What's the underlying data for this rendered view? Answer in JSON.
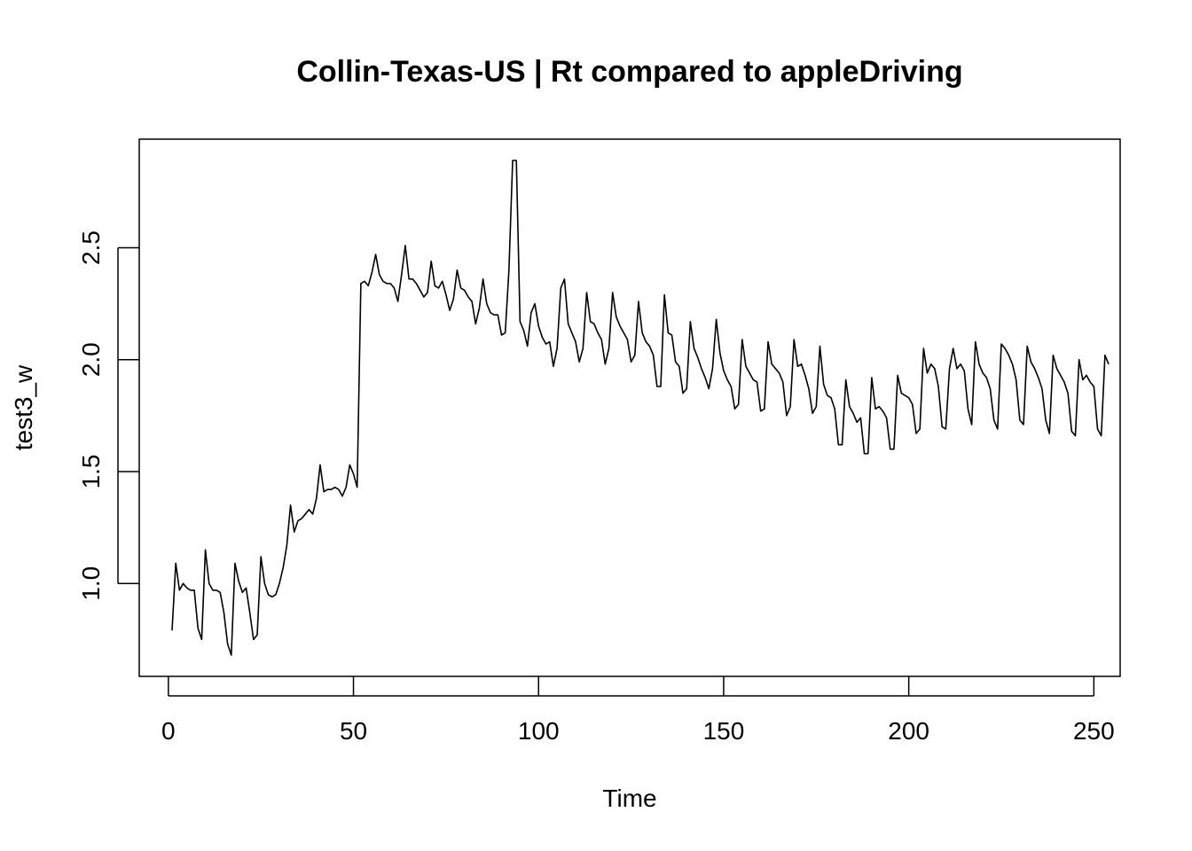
{
  "chart_data": {
    "type": "line",
    "title": "Collin-Texas-US | Rt compared to appleDriving",
    "xlabel": "Time",
    "ylabel": "test3_w",
    "xlim": [
      1,
      248
    ],
    "ylim": [
      0.68,
      2.89
    ],
    "x_ticks": [
      0,
      50,
      100,
      150,
      200,
      250
    ],
    "x_tick_labels": [
      "0",
      "50",
      "100",
      "150",
      "200",
      "250"
    ],
    "y_ticks": [
      1.0,
      1.5,
      2.0,
      2.5
    ],
    "y_tick_labels": [
      "1.0",
      "1.5",
      "2.0",
      "2.5"
    ],
    "grid": false,
    "legend": "none",
    "line_color": "#000000",
    "series": [
      {
        "x_start": 1,
        "x_step": 1,
        "values": [
          0.79,
          1.09,
          0.97,
          1.0,
          0.98,
          0.97,
          0.97,
          0.8,
          0.75,
          1.15,
          1.0,
          0.97,
          0.97,
          0.96,
          0.87,
          0.73,
          0.68,
          1.09,
          1.01,
          0.96,
          0.98,
          0.87,
          0.75,
          0.77,
          1.12,
          1.0,
          0.95,
          0.94,
          0.95,
          1.0,
          1.07,
          1.17,
          1.35,
          1.23,
          1.28,
          1.29,
          1.31,
          1.33,
          1.31,
          1.38,
          1.53,
          1.41,
          1.42,
          1.42,
          1.43,
          1.42,
          1.39,
          1.43,
          1.53,
          1.49,
          1.43,
          2.34,
          2.35,
          2.33,
          2.39,
          2.47,
          2.38,
          2.35,
          2.34,
          2.34,
          2.32,
          2.26,
          2.38,
          2.51,
          2.36,
          2.36,
          2.34,
          2.31,
          2.28,
          2.3,
          2.44,
          2.33,
          2.32,
          2.35,
          2.29,
          2.22,
          2.27,
          2.4,
          2.32,
          2.31,
          2.28,
          2.26,
          2.16,
          2.23,
          2.36,
          2.25,
          2.21,
          2.2,
          2.2,
          2.11,
          2.12,
          2.4,
          2.89,
          2.89,
          2.17,
          2.13,
          2.06,
          2.21,
          2.25,
          2.15,
          2.1,
          2.07,
          2.08,
          1.97,
          2.05,
          2.32,
          2.36,
          2.16,
          2.12,
          2.08,
          1.99,
          2.05,
          2.3,
          2.17,
          2.16,
          2.12,
          2.09,
          1.98,
          2.05,
          2.3,
          2.19,
          2.15,
          2.12,
          2.09,
          1.99,
          2.02,
          2.26,
          2.12,
          2.08,
          2.06,
          2.02,
          1.88,
          1.88,
          2.29,
          2.12,
          2.11,
          1.99,
          1.97,
          1.85,
          1.87,
          2.17,
          2.05,
          2.01,
          1.96,
          1.92,
          1.87,
          1.96,
          2.18,
          2.03,
          1.95,
          1.91,
          1.88,
          1.78,
          1.8,
          2.09,
          1.97,
          1.94,
          1.91,
          1.9,
          1.77,
          1.78,
          2.08,
          1.98,
          1.96,
          1.94,
          1.9,
          1.75,
          1.79,
          2.09,
          1.97,
          1.98,
          1.93,
          1.87,
          1.76,
          1.79,
          2.06,
          1.89,
          1.84,
          1.83,
          1.78,
          1.62,
          1.62,
          1.91,
          1.79,
          1.76,
          1.72,
          1.74,
          1.58,
          1.58,
          1.92,
          1.78,
          1.79,
          1.77,
          1.74,
          1.6,
          1.6,
          1.93,
          1.85,
          1.84,
          1.83,
          1.8,
          1.67,
          1.69,
          2.05,
          1.94,
          1.98,
          1.96,
          1.88,
          1.7,
          1.69,
          1.96,
          2.05,
          1.96,
          1.98,
          1.95,
          1.78,
          1.71,
          2.08,
          1.98,
          1.94,
          1.92,
          1.87,
          1.73,
          1.69,
          2.07,
          2.05,
          2.02,
          1.98,
          1.91,
          1.73,
          1.71,
          2.06,
          1.99,
          1.96,
          1.92,
          1.87,
          1.73,
          1.67,
          2.02,
          1.96,
          1.93,
          1.9,
          1.85,
          1.68,
          1.66,
          2.0,
          1.91,
          1.93,
          1.9,
          1.88,
          1.69,
          1.66,
          2.02,
          1.98
        ]
      }
    ]
  }
}
